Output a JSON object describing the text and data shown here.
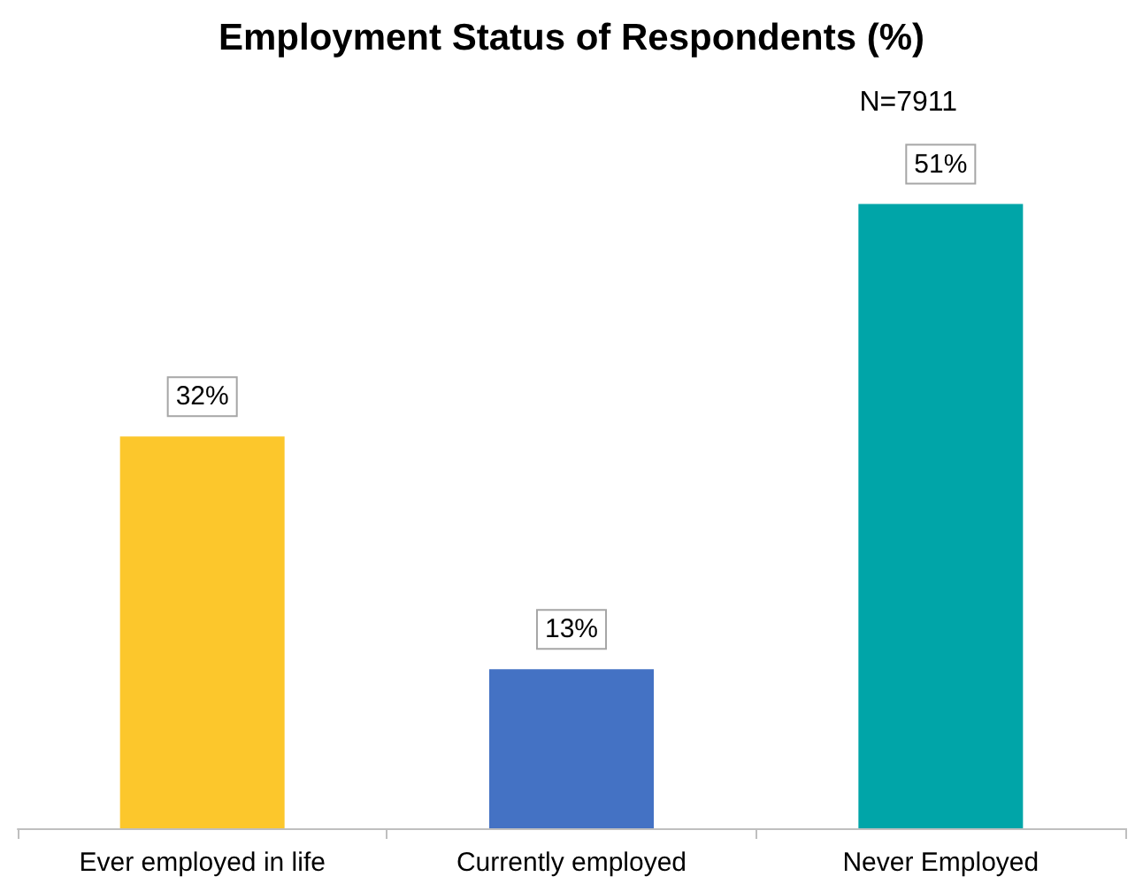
{
  "chart_data": {
    "type": "bar",
    "title": "Employment Status of Respondents (%)",
    "categories": [
      "Ever employed in life",
      "Currently employed",
      "Never Employed"
    ],
    "values": [
      32,
      13,
      51
    ],
    "colors": [
      "#fcc72c",
      "#4472c4",
      "#00a5a8"
    ],
    "value_labels": [
      "32%",
      "13%",
      "51%"
    ],
    "annotations": [
      "N=7911"
    ]
  }
}
